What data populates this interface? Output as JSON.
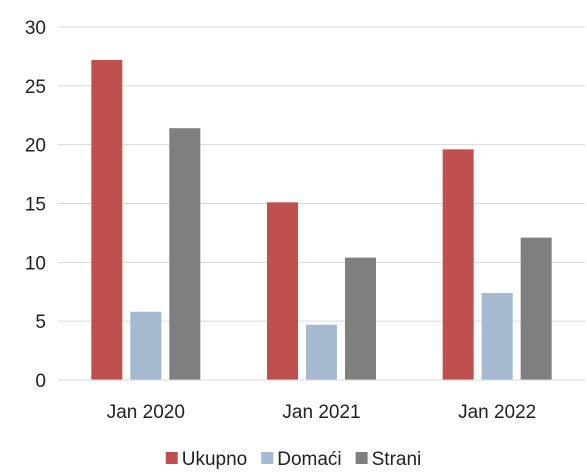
{
  "chart_data": {
    "type": "bar",
    "categories": [
      "Jan 2020",
      "Jan 2021",
      "Jan 2022"
    ],
    "series": [
      {
        "name": "Ukupno",
        "color": "#c0504d",
        "values": [
          27.2,
          15.1,
          19.6
        ]
      },
      {
        "name": "Domaći",
        "color": "#a5b9d0",
        "values": [
          5.8,
          4.7,
          7.4
        ]
      },
      {
        "name": "Strani",
        "color": "#7f7f7f",
        "values": [
          21.4,
          10.4,
          12.1
        ]
      }
    ],
    "yticks": [
      0,
      5,
      10,
      15,
      20,
      25,
      30
    ],
    "ylim": [
      0,
      30
    ],
    "grid": true,
    "legend": "bottom",
    "title": "",
    "xlabel": "",
    "ylabel": ""
  }
}
